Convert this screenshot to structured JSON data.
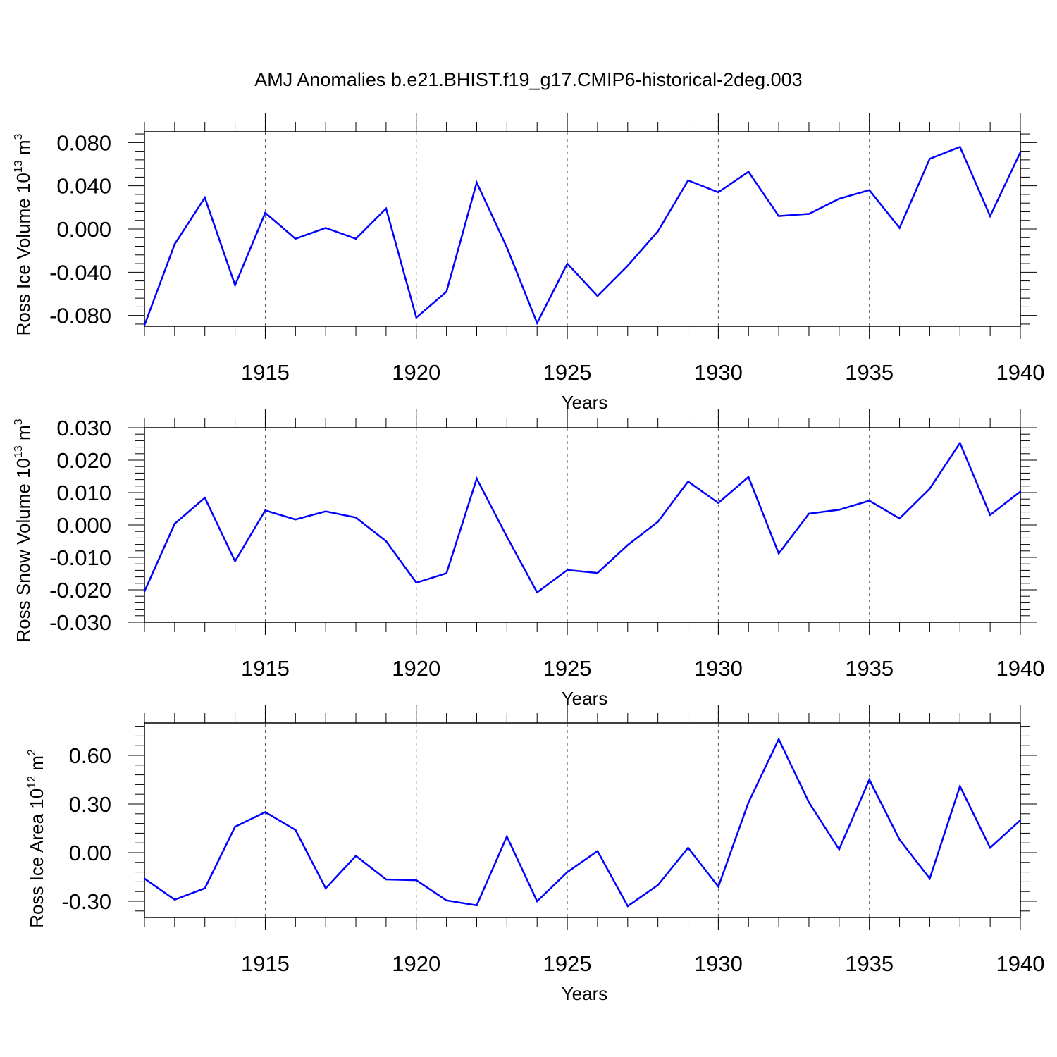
{
  "title": "AMJ Anomalies b.e21.BHIST.f19_g17.CMIP6-historical-2deg.003",
  "chart_data": [
    {
      "type": "line",
      "name": "ice-volume",
      "ylabel": {
        "main": "Ross Ice Volume 10",
        "exp": "13",
        "unit": " m",
        "unit_exp": "3"
      },
      "xlabel": "Years",
      "xlim": [
        1911,
        1940
      ],
      "ylim": [
        -0.09,
        0.09
      ],
      "yticks": [
        -0.08,
        -0.04,
        0.0,
        0.04,
        0.08
      ],
      "ytick_labels": [
        "-0.080",
        "-0.040",
        "0.000",
        "0.040",
        "0.080"
      ],
      "xticks": [
        1915,
        1920,
        1925,
        1930,
        1935,
        1940
      ],
      "xtick_labels": [
        "1915",
        "1920",
        "1925",
        "1930",
        "1935",
        "1940"
      ],
      "color": "#0000ff",
      "x": [
        1911,
        1912,
        1913,
        1914,
        1915,
        1916,
        1917,
        1918,
        1919,
        1920,
        1921,
        1922,
        1923,
        1924,
        1925,
        1926,
        1927,
        1928,
        1929,
        1930,
        1931,
        1932,
        1933,
        1934,
        1935,
        1936,
        1937,
        1938,
        1939,
        1940
      ],
      "values": [
        -0.089,
        -0.014,
        0.029,
        -0.052,
        0.015,
        -0.009,
        0.001,
        -0.009,
        0.019,
        -0.082,
        -0.058,
        0.043,
        -0.017,
        -0.087,
        -0.032,
        -0.062,
        -0.034,
        -0.002,
        0.045,
        0.034,
        0.053,
        0.012,
        0.014,
        0.028,
        0.036,
        0.001,
        0.065,
        0.076,
        0.012,
        0.071
      ]
    },
    {
      "type": "line",
      "name": "snow-volume",
      "ylabel": {
        "main": "Ross Snow Volume 10",
        "exp": "13",
        "unit": " m",
        "unit_exp": "3"
      },
      "xlabel": "Years",
      "xlim": [
        1911,
        1940
      ],
      "ylim": [
        -0.03,
        0.03
      ],
      "yticks": [
        -0.03,
        -0.02,
        -0.01,
        0.0,
        0.01,
        0.02,
        0.03
      ],
      "ytick_labels": [
        "-0.030",
        "-0.020",
        "-0.010",
        "0.000",
        "0.010",
        "0.020",
        "0.030"
      ],
      "xticks": [
        1915,
        1920,
        1925,
        1930,
        1935,
        1940
      ],
      "xtick_labels": [
        "1915",
        "1920",
        "1925",
        "1930",
        "1935",
        "1940"
      ],
      "color": "#0000ff",
      "x": [
        1911,
        1912,
        1913,
        1914,
        1915,
        1916,
        1917,
        1918,
        1919,
        1920,
        1921,
        1922,
        1923,
        1924,
        1925,
        1926,
        1927,
        1928,
        1929,
        1930,
        1931,
        1932,
        1933,
        1934,
        1935,
        1936,
        1937,
        1938,
        1939,
        1940
      ],
      "values": [
        -0.0205,
        0.0004,
        0.0084,
        -0.0112,
        0.0045,
        0.0017,
        0.0042,
        0.0023,
        -0.005,
        -0.0178,
        -0.0149,
        0.0143,
        -0.0036,
        -0.0208,
        -0.0139,
        -0.0148,
        -0.0062,
        0.001,
        0.0134,
        0.0068,
        0.0148,
        -0.0088,
        0.0035,
        0.0047,
        0.0075,
        0.002,
        0.0112,
        0.0253,
        0.0031,
        0.0103
      ]
    },
    {
      "type": "line",
      "name": "ice-area",
      "ylabel": {
        "main": "Ross Ice Area 10",
        "exp": "12",
        "unit": " m",
        "unit_exp": "2"
      },
      "xlabel": "Years",
      "xlim": [
        1911,
        1940
      ],
      "ylim": [
        -0.4,
        0.8
      ],
      "yticks": [
        -0.3,
        0.0,
        0.3,
        0.6
      ],
      "ytick_labels": [
        "-0.30",
        "0.00",
        "0.30",
        "0.60"
      ],
      "xticks": [
        1915,
        1920,
        1925,
        1930,
        1935,
        1940
      ],
      "xtick_labels": [
        "1915",
        "1920",
        "1925",
        "1930",
        "1935",
        "1940"
      ],
      "color": "#0000ff",
      "x": [
        1911,
        1912,
        1913,
        1914,
        1915,
        1916,
        1917,
        1918,
        1919,
        1920,
        1921,
        1922,
        1923,
        1924,
        1925,
        1926,
        1927,
        1928,
        1929,
        1930,
        1931,
        1932,
        1933,
        1934,
        1935,
        1936,
        1937,
        1938,
        1939,
        1940
      ],
      "values": [
        -0.16,
        -0.29,
        -0.22,
        0.16,
        0.25,
        0.14,
        -0.22,
        -0.02,
        -0.165,
        -0.17,
        -0.295,
        -0.325,
        0.1,
        -0.3,
        -0.12,
        0.01,
        -0.33,
        -0.2,
        0.03,
        -0.21,
        0.31,
        0.7,
        0.31,
        0.02,
        0.45,
        0.08,
        -0.16,
        0.41,
        0.03,
        0.2
      ]
    }
  ]
}
